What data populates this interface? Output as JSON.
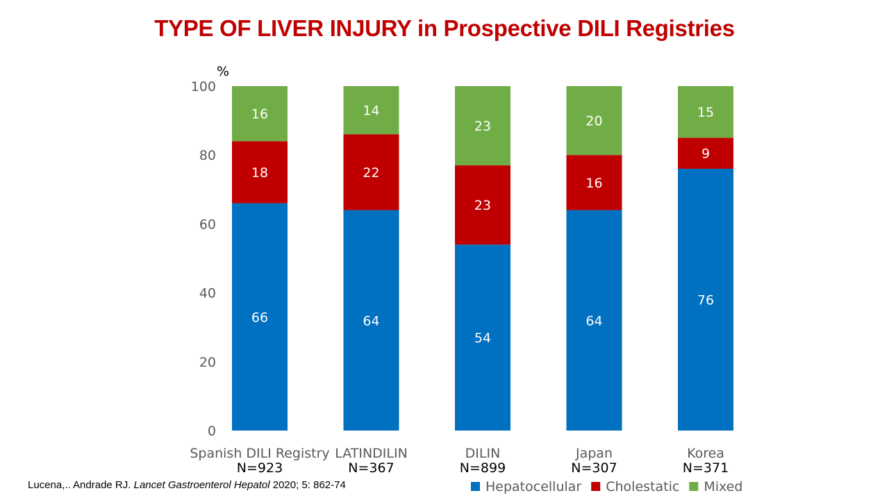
{
  "title": "TYPE OF LIVER INJURY in Prospective DILI Registries",
  "citation": {
    "authors": "Lucena,.. Andrade RJ.",
    "journal": "Lancet Gastroenterol Hepatol",
    "details": "2020; 5: 862-74"
  },
  "chart_data": {
    "type": "bar",
    "stacked": true,
    "categories": [
      "Spanish DILI Registry",
      "LATINDILIN",
      "DILIN",
      "Japan",
      "Korea"
    ],
    "sample_sizes": [
      "N=923",
      "N=367",
      "N=899",
      "N=307",
      "N=371"
    ],
    "ylabel": "%",
    "ylim": [
      0,
      100
    ],
    "yticks": [
      0,
      20,
      40,
      60,
      80,
      100
    ],
    "grid": false,
    "legend_position": "bottom-right",
    "series": [
      {
        "name": "Hepatocellular",
        "color": "#0070c0",
        "values": [
          66,
          64,
          54,
          64,
          76
        ]
      },
      {
        "name": "Cholestatic",
        "color": "#c00000",
        "values": [
          18,
          22,
          23,
          16,
          9
        ]
      },
      {
        "name": "Mixed",
        "color": "#70ad47",
        "values": [
          16,
          14,
          23,
          20,
          15
        ]
      }
    ]
  }
}
